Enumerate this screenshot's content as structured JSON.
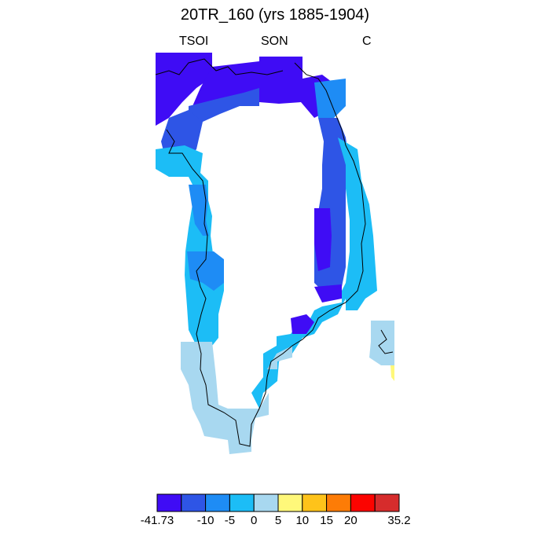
{
  "title": "20TR_160 (yrs 1885-1904)",
  "subtitle_left": "TSOI",
  "subtitle_center": "SON",
  "subtitle_right": "C",
  "colorbar": {
    "colors": [
      "#3f0cf5",
      "#2e55e6",
      "#1e8cf5",
      "#1cbdf6",
      "#a8d8f0",
      "#fff87a",
      "#fec31a",
      "#fd7c06",
      "#fc0400",
      "#d62c2c"
    ],
    "tick_labels": [
      "-41.73",
      "-10",
      "-5",
      "0",
      "5",
      "10",
      "15",
      "20",
      "35.2"
    ]
  },
  "chart_data": {
    "type": "heatmap",
    "variable": "TSOI",
    "units": "C",
    "season": "SON",
    "value_range": [
      -41.73,
      35.2
    ],
    "levels": [
      -10,
      -5,
      0,
      5,
      10,
      15,
      20
    ]
  }
}
